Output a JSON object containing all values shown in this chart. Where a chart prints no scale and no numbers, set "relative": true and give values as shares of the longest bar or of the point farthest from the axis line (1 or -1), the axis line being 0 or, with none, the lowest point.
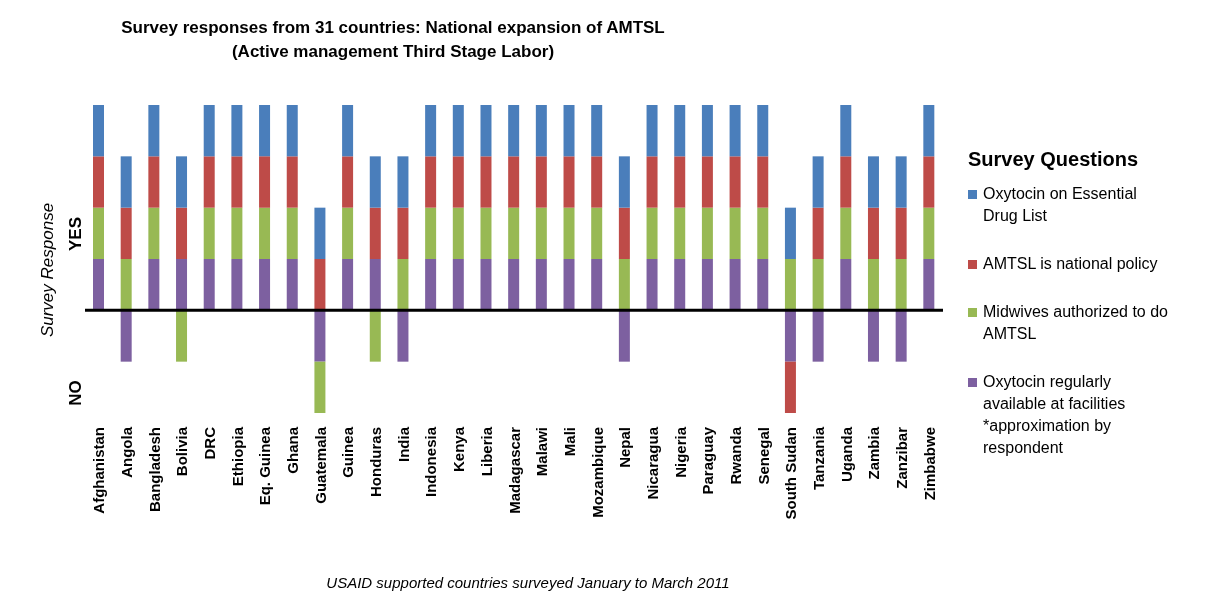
{
  "chart_data": {
    "type": "bar",
    "title": "Survey responses from 31 countries: National expansion of AMTSL",
    "subtitle": "(Active management Third Stage Labor)",
    "ylabel": "Survey Response",
    "legend_title": "Survey Questions",
    "legend": "right",
    "stacked": true,
    "relative": true,
    "categories": [
      "Afghanistan",
      "Angola",
      "Bangladesh",
      "Bolivia",
      "DRC",
      "Ethiopia",
      "Eq. Guinea",
      "Ghana",
      "Guatemala",
      "Guinea",
      "Honduras",
      "India",
      "Indonesia",
      "Kenya",
      "Liberia",
      "Madagascar",
      "Malawi",
      "Mali",
      "Mozambique",
      "Nepal",
      "Nicaragua",
      "Nigeria",
      "Paraguay",
      "Rwanda",
      "Senegal",
      "South Sudan",
      "Tanzania",
      "Uganda",
      "Zambia",
      "Zanzibar",
      "Zimbabwe"
    ],
    "series": [
      {
        "name": "Oxytocin regularly available at facilities *approximation by respondent",
        "color": "#7d60a0",
        "values": [
          0.25,
          -0.25,
          0.25,
          0.25,
          0.25,
          0.25,
          0.25,
          0.25,
          -0.25,
          0.25,
          0.25,
          -0.25,
          0.25,
          0.25,
          0.25,
          0.25,
          0.25,
          0.25,
          0.25,
          -0.25,
          0.25,
          0.25,
          0.25,
          0.25,
          0.25,
          -0.25,
          -0.25,
          0.25,
          -0.25,
          -0.25,
          0.25
        ]
      },
      {
        "name": "Midwives authorized to do AMTSL",
        "color": "#98b954",
        "values": [
          0.25,
          0.25,
          0.25,
          -0.25,
          0.25,
          0.25,
          0.25,
          0.25,
          -0.25,
          0.25,
          -0.25,
          0.25,
          0.25,
          0.25,
          0.25,
          0.25,
          0.25,
          0.25,
          0.25,
          0.25,
          0.25,
          0.25,
          0.25,
          0.25,
          0.25,
          0.25,
          0.25,
          0.25,
          0.25,
          0.25,
          0.25
        ]
      },
      {
        "name": "AMTSL is national policy",
        "color": "#be4b48",
        "values": [
          0.25,
          0.25,
          0.25,
          0.25,
          0.25,
          0.25,
          0.25,
          0.25,
          0.25,
          0.25,
          0.25,
          0.25,
          0.25,
          0.25,
          0.25,
          0.25,
          0.25,
          0.25,
          0.25,
          0.25,
          0.25,
          0.25,
          0.25,
          0.25,
          0.25,
          -0.25,
          0.25,
          0.25,
          0.25,
          0.25,
          0.25
        ]
      },
      {
        "name": "Oxytocin on Essential Drug List",
        "color": "#4a7ebb",
        "values": [
          0.25,
          0.25,
          0.25,
          0.25,
          0.25,
          0.25,
          0.25,
          0.25,
          0.25,
          0.25,
          0.25,
          0.25,
          0.25,
          0.25,
          0.25,
          0.25,
          0.25,
          0.25,
          0.25,
          0.25,
          0.25,
          0.25,
          0.25,
          0.25,
          0.25,
          0.25,
          0.25,
          0.25,
          0.25,
          0.25,
          0.25
        ]
      }
    ],
    "annotations": [
      "YES",
      "NO",
      "USAID supported countries surveyed January to March 2011"
    ]
  }
}
